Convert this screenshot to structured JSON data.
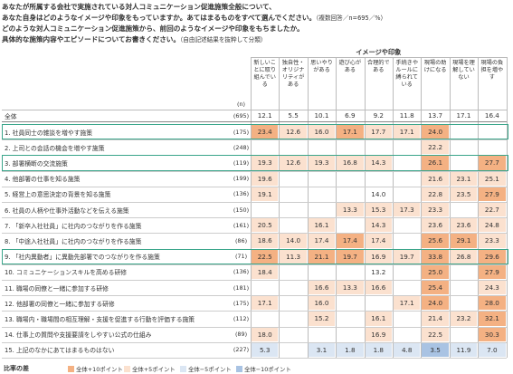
{
  "header": {
    "lines": [
      {
        "text": "あなたが所属する会社で実施されている対人コミュニケーション促進施策全般について、"
      },
      {
        "text": "あなた自身はどのようなイメージや印象をもっていますか。あてはまるものをすべて選んでください。",
        "note": "（複数回答／n=695／%）"
      },
      {
        "text": "どのような対人コミュニケーション促進施策から、前回のようなイメージや印象をもちましたか。"
      },
      {
        "text": "具体的な施策内容やエピソードについてお書きください。",
        "note": "（自由記述結果を抜粋して分類）"
      }
    ]
  },
  "table": {
    "group_header": "イメージや印象",
    "n_header": "(n)",
    "highlight_color": "#3aa58a",
    "columns": [
      "新しいことに取り組んでいる",
      "独自性・オリジナリティがある",
      "思いやりがある",
      "遊び心がある",
      "合理的である",
      "手続きやルールに縛られている",
      "現場の助けになる",
      "現場を理解していない",
      "現場の負担を増やす"
    ],
    "total": {
      "label": "全体",
      "n": "(695)",
      "values": [
        "12.1",
        "5.5",
        "10.1",
        "6.9",
        "9.2",
        "11.8",
        "13.7",
        "17.1",
        "16.4"
      ]
    },
    "rows": [
      {
        "label": "1. 社員同士の雑談を増やす施策",
        "n": "(175)",
        "values": [
          "23.4",
          "12.6",
          "16.0",
          "17.1",
          "17.7",
          "17.1",
          "24.0",
          null,
          null
        ],
        "highlight": true
      },
      {
        "label": "2. 上司との会話の機会を増やす施策",
        "n": "(248)",
        "values": [
          null,
          null,
          null,
          null,
          null,
          null,
          "22.2",
          null,
          null
        ],
        "highlight": false
      },
      {
        "label": "3. 部署横断の交流施策",
        "n": "(119)",
        "values": [
          "19.3",
          "12.6",
          "19.3",
          "16.8",
          "14.3",
          null,
          "26.1",
          null,
          "27.7"
        ],
        "highlight": true
      },
      {
        "label": "4. 他部署の仕事を知る施策",
        "n": "(199)",
        "values": [
          "19.6",
          null,
          null,
          null,
          null,
          null,
          "21.6",
          "23.1",
          "25.1"
        ],
        "highlight": false
      },
      {
        "label": "5. 経営上の意思決定の背景を知る施策",
        "n": "(136)",
        "values": [
          "19.1",
          null,
          null,
          null,
          "14.0",
          null,
          "22.8",
          "23.5",
          "27.9"
        ],
        "highlight": false
      },
      {
        "label": "6. 社員の人柄や仕事外活動などを伝える施策",
        "n": "(150)",
        "values": [
          null,
          null,
          null,
          "13.3",
          "15.3",
          "17.3",
          "23.3",
          null,
          "22.7"
        ],
        "highlight": false
      },
      {
        "label": "7. 「新卒入社社員」に社内のつながりを作る施策",
        "n": "(161)",
        "values": [
          "20.5",
          null,
          "16.1",
          null,
          "14.3",
          null,
          "23.6",
          "23.6",
          "24.8"
        ],
        "highlight": false
      },
      {
        "label": "8. 「中途入社社員」に社内のつながりを作る施策",
        "n": "(86)",
        "values": [
          "18.6",
          "14.0",
          "17.4",
          "17.4",
          "17.4",
          null,
          "25.6",
          "29.1",
          "23.3"
        ],
        "highlight": false
      },
      {
        "label": "9. 「社内異動者」に異動先部署でのつながりを作る施策",
        "n": "(71)",
        "values": [
          "22.5",
          "11.3",
          "21.1",
          "19.7",
          "16.9",
          "19.7",
          "33.8",
          "26.8",
          "29.6"
        ],
        "highlight": true
      },
      {
        "label": "10. コミュニケーションスキルを高める研修",
        "n": "(136)",
        "values": [
          "18.4",
          null,
          null,
          null,
          "13.2",
          null,
          "25.0",
          null,
          "27.9"
        ],
        "highlight": false
      },
      {
        "label": "11. 職場の同僚と一緒に参加する研修",
        "n": "(181)",
        "values": [
          null,
          null,
          "16.6",
          "13.3",
          "16.6",
          null,
          "25.4",
          null,
          "24.3"
        ],
        "highlight": false
      },
      {
        "label": "12. 他部署の同僚と一緒に参加する研修",
        "n": "(175)",
        "values": [
          "17.1",
          null,
          "16.0",
          null,
          null,
          "17.1",
          "24.0",
          null,
          "28.0"
        ],
        "highlight": false
      },
      {
        "label": "13. 職場内・職場間の相互理解・支援を促進する行動を評価する施策",
        "n": "(112)",
        "values": [
          null,
          null,
          "15.2",
          null,
          "16.1",
          null,
          "21.4",
          "23.2",
          "32.1"
        ],
        "highlight": false
      },
      {
        "label": "14. 仕事上の質問や支援要請をしやすい公式の仕組み",
        "n": "(89)",
        "values": [
          "18.0",
          null,
          null,
          null,
          "16.9",
          null,
          "22.5",
          null,
          "30.3"
        ],
        "highlight": false
      },
      {
        "label": "15. 上記のなかにあてはまるものはない",
        "n": "(227)",
        "values": [
          "5.3",
          null,
          "3.1",
          "1.8",
          "1.8",
          "4.8",
          "3.5",
          "11.9",
          "7.0"
        ],
        "highlight": false
      }
    ]
  },
  "legend": {
    "title": "比率の差",
    "items": [
      {
        "label": "全体+10ポイント",
        "diff": 10,
        "color": "#f4b183"
      },
      {
        "label": "全体+5ポイント",
        "diff": 5,
        "color": "#fbe1cf"
      },
      {
        "label": "全体−5ポイント",
        "diff": -5,
        "color": "#dbe6f3"
      },
      {
        "label": "全体−10ポイント",
        "diff": -10,
        "color": "#a9c3e3"
      }
    ]
  }
}
